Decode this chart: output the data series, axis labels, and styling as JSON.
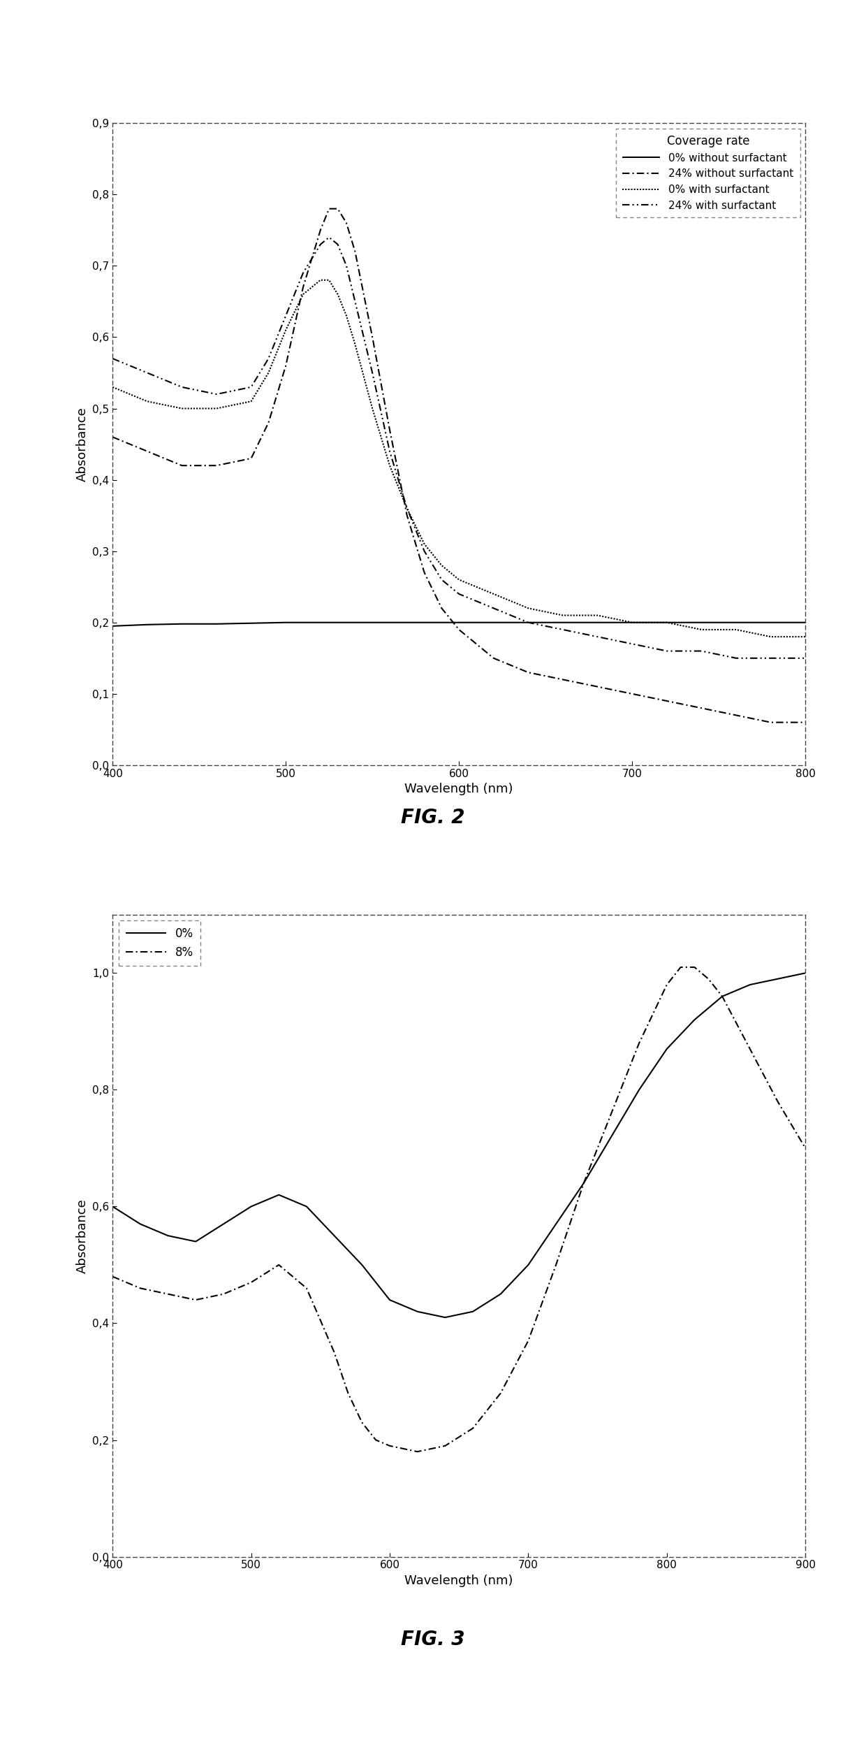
{
  "fig2": {
    "xlabel": "Wavelength (nm)",
    "ylabel": "Absorbance",
    "fig_label": "FIG. 2",
    "xlim": [
      400,
      800
    ],
    "ylim": [
      0.0,
      0.9
    ],
    "yticks": [
      0.0,
      0.1,
      0.2,
      0.3,
      0.4,
      0.5,
      0.6,
      0.7,
      0.8,
      0.9
    ],
    "xticks": [
      400,
      500,
      600,
      700,
      800
    ],
    "legend_title": "Coverage rate",
    "series": [
      {
        "label": "0% without surfactant",
        "style": "solid",
        "color": "#000000",
        "linewidth": 1.5,
        "x": [
          400,
          420,
          440,
          460,
          480,
          500,
          510,
          520,
          530,
          540,
          550,
          560,
          570,
          580,
          590,
          600,
          620,
          640,
          660,
          680,
          700,
          720,
          740,
          760,
          780,
          800
        ],
        "y": [
          0.195,
          0.197,
          0.198,
          0.198,
          0.199,
          0.2,
          0.2,
          0.2,
          0.2,
          0.2,
          0.2,
          0.2,
          0.2,
          0.2,
          0.2,
          0.2,
          0.2,
          0.2,
          0.2,
          0.2,
          0.2,
          0.2,
          0.2,
          0.2,
          0.2,
          0.2
        ]
      },
      {
        "label": "24% without surfactant",
        "style": "dashdot",
        "color": "#000000",
        "linewidth": 1.5,
        "x": [
          400,
          420,
          440,
          460,
          480,
          490,
          500,
          510,
          520,
          525,
          530,
          535,
          540,
          550,
          560,
          570,
          580,
          590,
          600,
          620,
          640,
          660,
          680,
          700,
          720,
          740,
          760,
          780,
          800
        ],
        "y": [
          0.46,
          0.44,
          0.42,
          0.42,
          0.43,
          0.48,
          0.56,
          0.67,
          0.75,
          0.78,
          0.78,
          0.76,
          0.72,
          0.6,
          0.47,
          0.35,
          0.27,
          0.22,
          0.19,
          0.15,
          0.13,
          0.12,
          0.11,
          0.1,
          0.09,
          0.08,
          0.07,
          0.06,
          0.06
        ]
      },
      {
        "label": "0% with surfactant",
        "style": "dotted",
        "color": "#000000",
        "linewidth": 1.5,
        "x": [
          400,
          420,
          440,
          460,
          480,
          490,
          500,
          510,
          520,
          525,
          530,
          535,
          540,
          550,
          560,
          570,
          580,
          590,
          600,
          620,
          640,
          660,
          680,
          700,
          720,
          740,
          760,
          780,
          800
        ],
        "y": [
          0.53,
          0.51,
          0.5,
          0.5,
          0.51,
          0.55,
          0.61,
          0.66,
          0.68,
          0.68,
          0.66,
          0.63,
          0.59,
          0.5,
          0.42,
          0.36,
          0.31,
          0.28,
          0.26,
          0.24,
          0.22,
          0.21,
          0.21,
          0.2,
          0.2,
          0.19,
          0.19,
          0.18,
          0.18
        ]
      },
      {
        "label": "24% with surfactant",
        "style": "dashdotdot",
        "color": "#000000",
        "linewidth": 1.5,
        "x": [
          400,
          420,
          440,
          460,
          480,
          490,
          500,
          510,
          520,
          525,
          530,
          535,
          540,
          550,
          560,
          570,
          580,
          590,
          600,
          620,
          640,
          660,
          680,
          700,
          720,
          740,
          760,
          780,
          800
        ],
        "y": [
          0.57,
          0.55,
          0.53,
          0.52,
          0.53,
          0.57,
          0.63,
          0.69,
          0.73,
          0.74,
          0.73,
          0.7,
          0.65,
          0.55,
          0.44,
          0.36,
          0.3,
          0.26,
          0.24,
          0.22,
          0.2,
          0.19,
          0.18,
          0.17,
          0.16,
          0.16,
          0.15,
          0.15,
          0.15
        ]
      }
    ]
  },
  "fig3": {
    "xlabel": "Wavelength (nm)",
    "ylabel": "Absorbance",
    "fig_label": "FIG. 3",
    "xlim": [
      400,
      900
    ],
    "ylim": [
      0.0,
      1.1
    ],
    "yticks": [
      0.0,
      0.2,
      0.4,
      0.6,
      0.8,
      1.0
    ],
    "xticks": [
      400,
      500,
      600,
      700,
      800,
      900
    ],
    "series": [
      {
        "label": "0%",
        "style": "solid",
        "color": "#000000",
        "linewidth": 1.5,
        "x": [
          400,
          420,
          440,
          460,
          480,
          500,
          520,
          530,
          540,
          560,
          580,
          600,
          620,
          640,
          660,
          680,
          700,
          720,
          740,
          760,
          780,
          800,
          820,
          840,
          860,
          880,
          900
        ],
        "y": [
          0.6,
          0.57,
          0.55,
          0.54,
          0.57,
          0.6,
          0.62,
          0.61,
          0.6,
          0.55,
          0.5,
          0.44,
          0.42,
          0.41,
          0.42,
          0.45,
          0.5,
          0.57,
          0.64,
          0.72,
          0.8,
          0.87,
          0.92,
          0.96,
          0.98,
          0.99,
          1.0
        ]
      },
      {
        "label": "8%",
        "style": "dashdot",
        "color": "#000000",
        "linewidth": 1.5,
        "x": [
          400,
          420,
          440,
          460,
          480,
          500,
          520,
          540,
          560,
          570,
          580,
          590,
          600,
          620,
          640,
          660,
          680,
          700,
          720,
          740,
          760,
          780,
          800,
          810,
          820,
          830,
          840,
          860,
          880,
          900
        ],
        "y": [
          0.48,
          0.46,
          0.45,
          0.44,
          0.45,
          0.47,
          0.5,
          0.46,
          0.35,
          0.28,
          0.23,
          0.2,
          0.19,
          0.18,
          0.19,
          0.22,
          0.28,
          0.37,
          0.5,
          0.64,
          0.76,
          0.88,
          0.98,
          1.01,
          1.01,
          0.99,
          0.96,
          0.87,
          0.78,
          0.7
        ]
      }
    ]
  },
  "background_color": "#ffffff",
  "text_color": "#000000"
}
